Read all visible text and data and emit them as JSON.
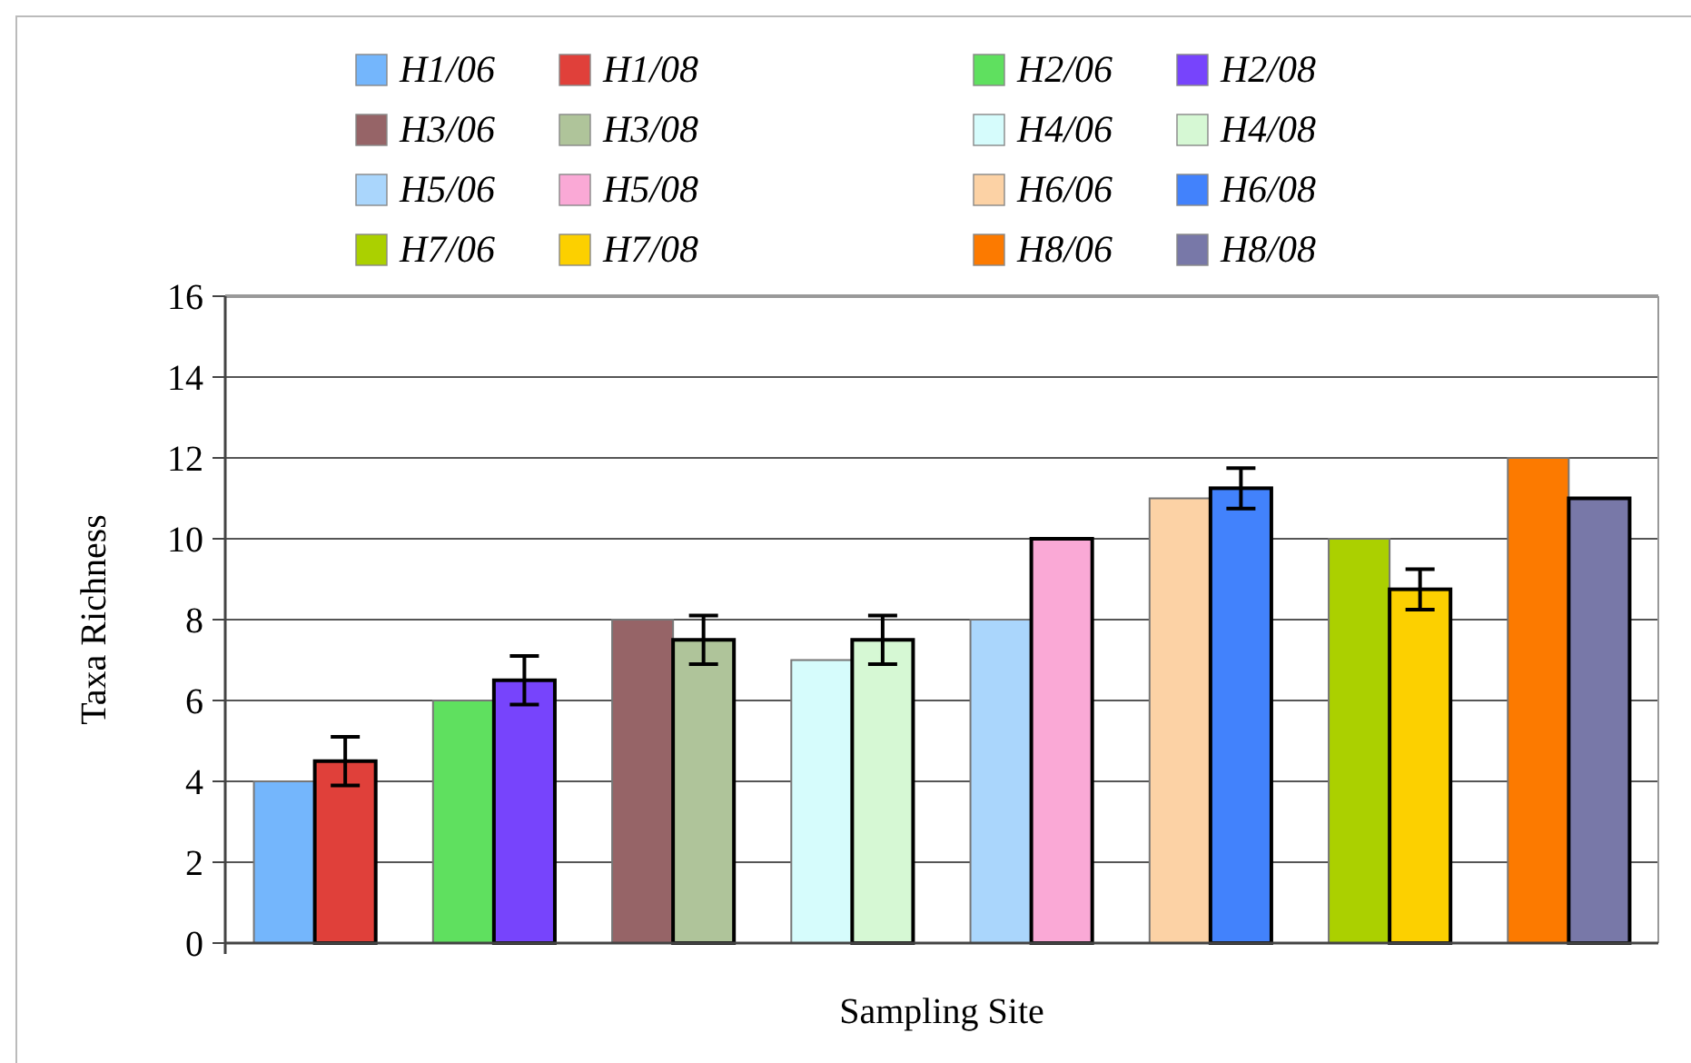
{
  "chart_data": {
    "type": "bar",
    "xlabel": "Sampling Site",
    "ylabel": "Taxa Richness",
    "categories": [
      null,
      null,
      null,
      null,
      null,
      null,
      null,
      null
    ],
    "ylim": [
      0,
      16
    ],
    "yticks": [
      0,
      2,
      4,
      6,
      8,
      10,
      12,
      14,
      16
    ],
    "grid": "y",
    "legend": "top",
    "series": [
      {
        "name": "H1/06",
        "color": "#74b6fc",
        "values": [
          4,
          null,
          null,
          null,
          null,
          null,
          null,
          null
        ]
      },
      {
        "name": "H1/08",
        "color": "#e0403a",
        "values": [
          4.5,
          null,
          null,
          null,
          null,
          null,
          null,
          null
        ],
        "errors": [
          0.6,
          null,
          null,
          null,
          null,
          null,
          null,
          null
        ]
      },
      {
        "name": "H2/06",
        "color": "#5fe05f",
        "values": [
          null,
          6,
          null,
          null,
          null,
          null,
          null,
          null
        ]
      },
      {
        "name": "H2/08",
        "color": "#7744fc",
        "values": [
          null,
          6.5,
          null,
          null,
          null,
          null,
          null,
          null
        ],
        "errors": [
          null,
          0.6,
          null,
          null,
          null,
          null,
          null,
          null
        ]
      },
      {
        "name": "H3/06",
        "color": "#966467",
        "values": [
          null,
          null,
          8,
          null,
          null,
          null,
          null,
          null
        ]
      },
      {
        "name": "H3/08",
        "color": "#afc49a",
        "values": [
          null,
          null,
          7.5,
          null,
          null,
          null,
          null,
          null
        ],
        "errors": [
          null,
          null,
          0.6,
          null,
          null,
          null,
          null,
          null
        ]
      },
      {
        "name": "H4/06",
        "color": "#d6fcfc",
        "values": [
          null,
          null,
          null,
          7,
          null,
          null,
          null,
          null
        ]
      },
      {
        "name": "H4/08",
        "color": "#d6f8d4",
        "values": [
          null,
          null,
          null,
          7.5,
          null,
          null,
          null,
          null
        ],
        "errors": [
          null,
          null,
          null,
          0.6,
          null,
          null,
          null,
          null
        ]
      },
      {
        "name": "H5/06",
        "color": "#aad6fc",
        "values": [
          null,
          null,
          null,
          null,
          8,
          null,
          null,
          null
        ]
      },
      {
        "name": "H5/08",
        "color": "#faa9d6",
        "values": [
          null,
          null,
          null,
          null,
          10,
          null,
          null,
          null
        ]
      },
      {
        "name": "H6/06",
        "color": "#fcd2a5",
        "values": [
          null,
          null,
          null,
          null,
          null,
          11,
          null,
          null
        ]
      },
      {
        "name": "H6/08",
        "color": "#4282fc",
        "values": [
          null,
          null,
          null,
          null,
          null,
          11.25,
          null,
          null
        ],
        "errors": [
          null,
          null,
          null,
          null,
          null,
          0.5,
          null,
          null
        ]
      },
      {
        "name": "H7/06",
        "color": "#abd000",
        "values": [
          null,
          null,
          null,
          null,
          null,
          null,
          10,
          null
        ]
      },
      {
        "name": "H7/08",
        "color": "#fcd000",
        "values": [
          null,
          null,
          null,
          null,
          null,
          null,
          8.75,
          null
        ],
        "errors": [
          null,
          null,
          null,
          null,
          null,
          null,
          0.5,
          null
        ]
      },
      {
        "name": "H8/06",
        "color": "#fc7a00",
        "values": [
          null,
          null,
          null,
          null,
          null,
          null,
          null,
          12
        ]
      },
      {
        "name": "H8/08",
        "color": "#7878a8",
        "values": [
          null,
          null,
          null,
          null,
          null,
          null,
          null,
          11
        ]
      }
    ]
  }
}
